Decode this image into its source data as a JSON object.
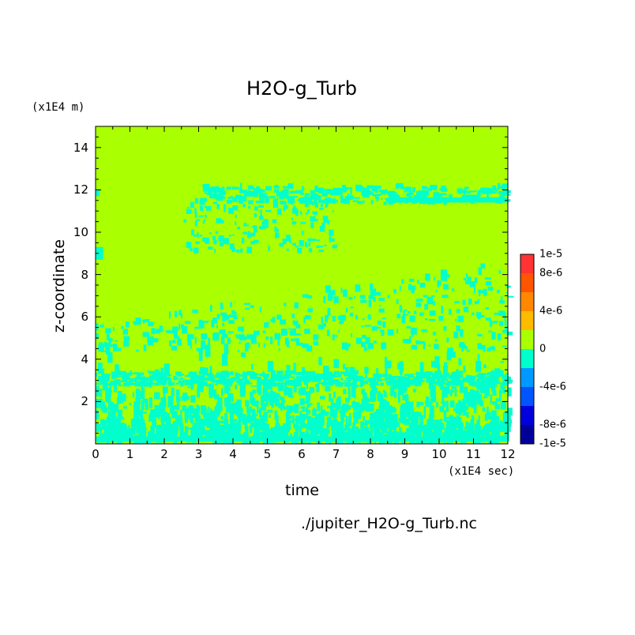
{
  "chart_data": {
    "type": "heatmap",
    "title": "H2O-g_Turb",
    "xlabel": "time",
    "ylabel": "z-coordinate",
    "x_unit": "(x1E4 sec)",
    "y_unit": "(x1E4 m)",
    "xlim": [
      0,
      12
    ],
    "ylim": [
      0,
      15
    ],
    "x_ticks": [
      "0",
      "1",
      "2",
      "3",
      "4",
      "5",
      "6",
      "7",
      "8",
      "9",
      "10",
      "11",
      "12"
    ],
    "y_ticks": [
      "2",
      "4",
      "6",
      "8",
      "10",
      "12",
      "14"
    ],
    "colorbar": {
      "range": [
        -1e-05,
        1e-05
      ],
      "labels": [
        "1e-5",
        "8e-6",
        "4e-6",
        "0",
        "-4e-6",
        "-8e-6",
        "-1e-5"
      ],
      "colors": [
        "#ff3333",
        "#ff5500",
        "#ff8800",
        "#ffbb00",
        "#aaff00",
        "#00ffcc",
        "#0099ff",
        "#0055ff",
        "#0000dd",
        "#000099"
      ]
    },
    "field_description_levels": {
      "background": "#aaff00",
      "negative_small": "#00ffcc"
    },
    "source_file": "./jupiter_H2O-g_Turb.nc"
  }
}
